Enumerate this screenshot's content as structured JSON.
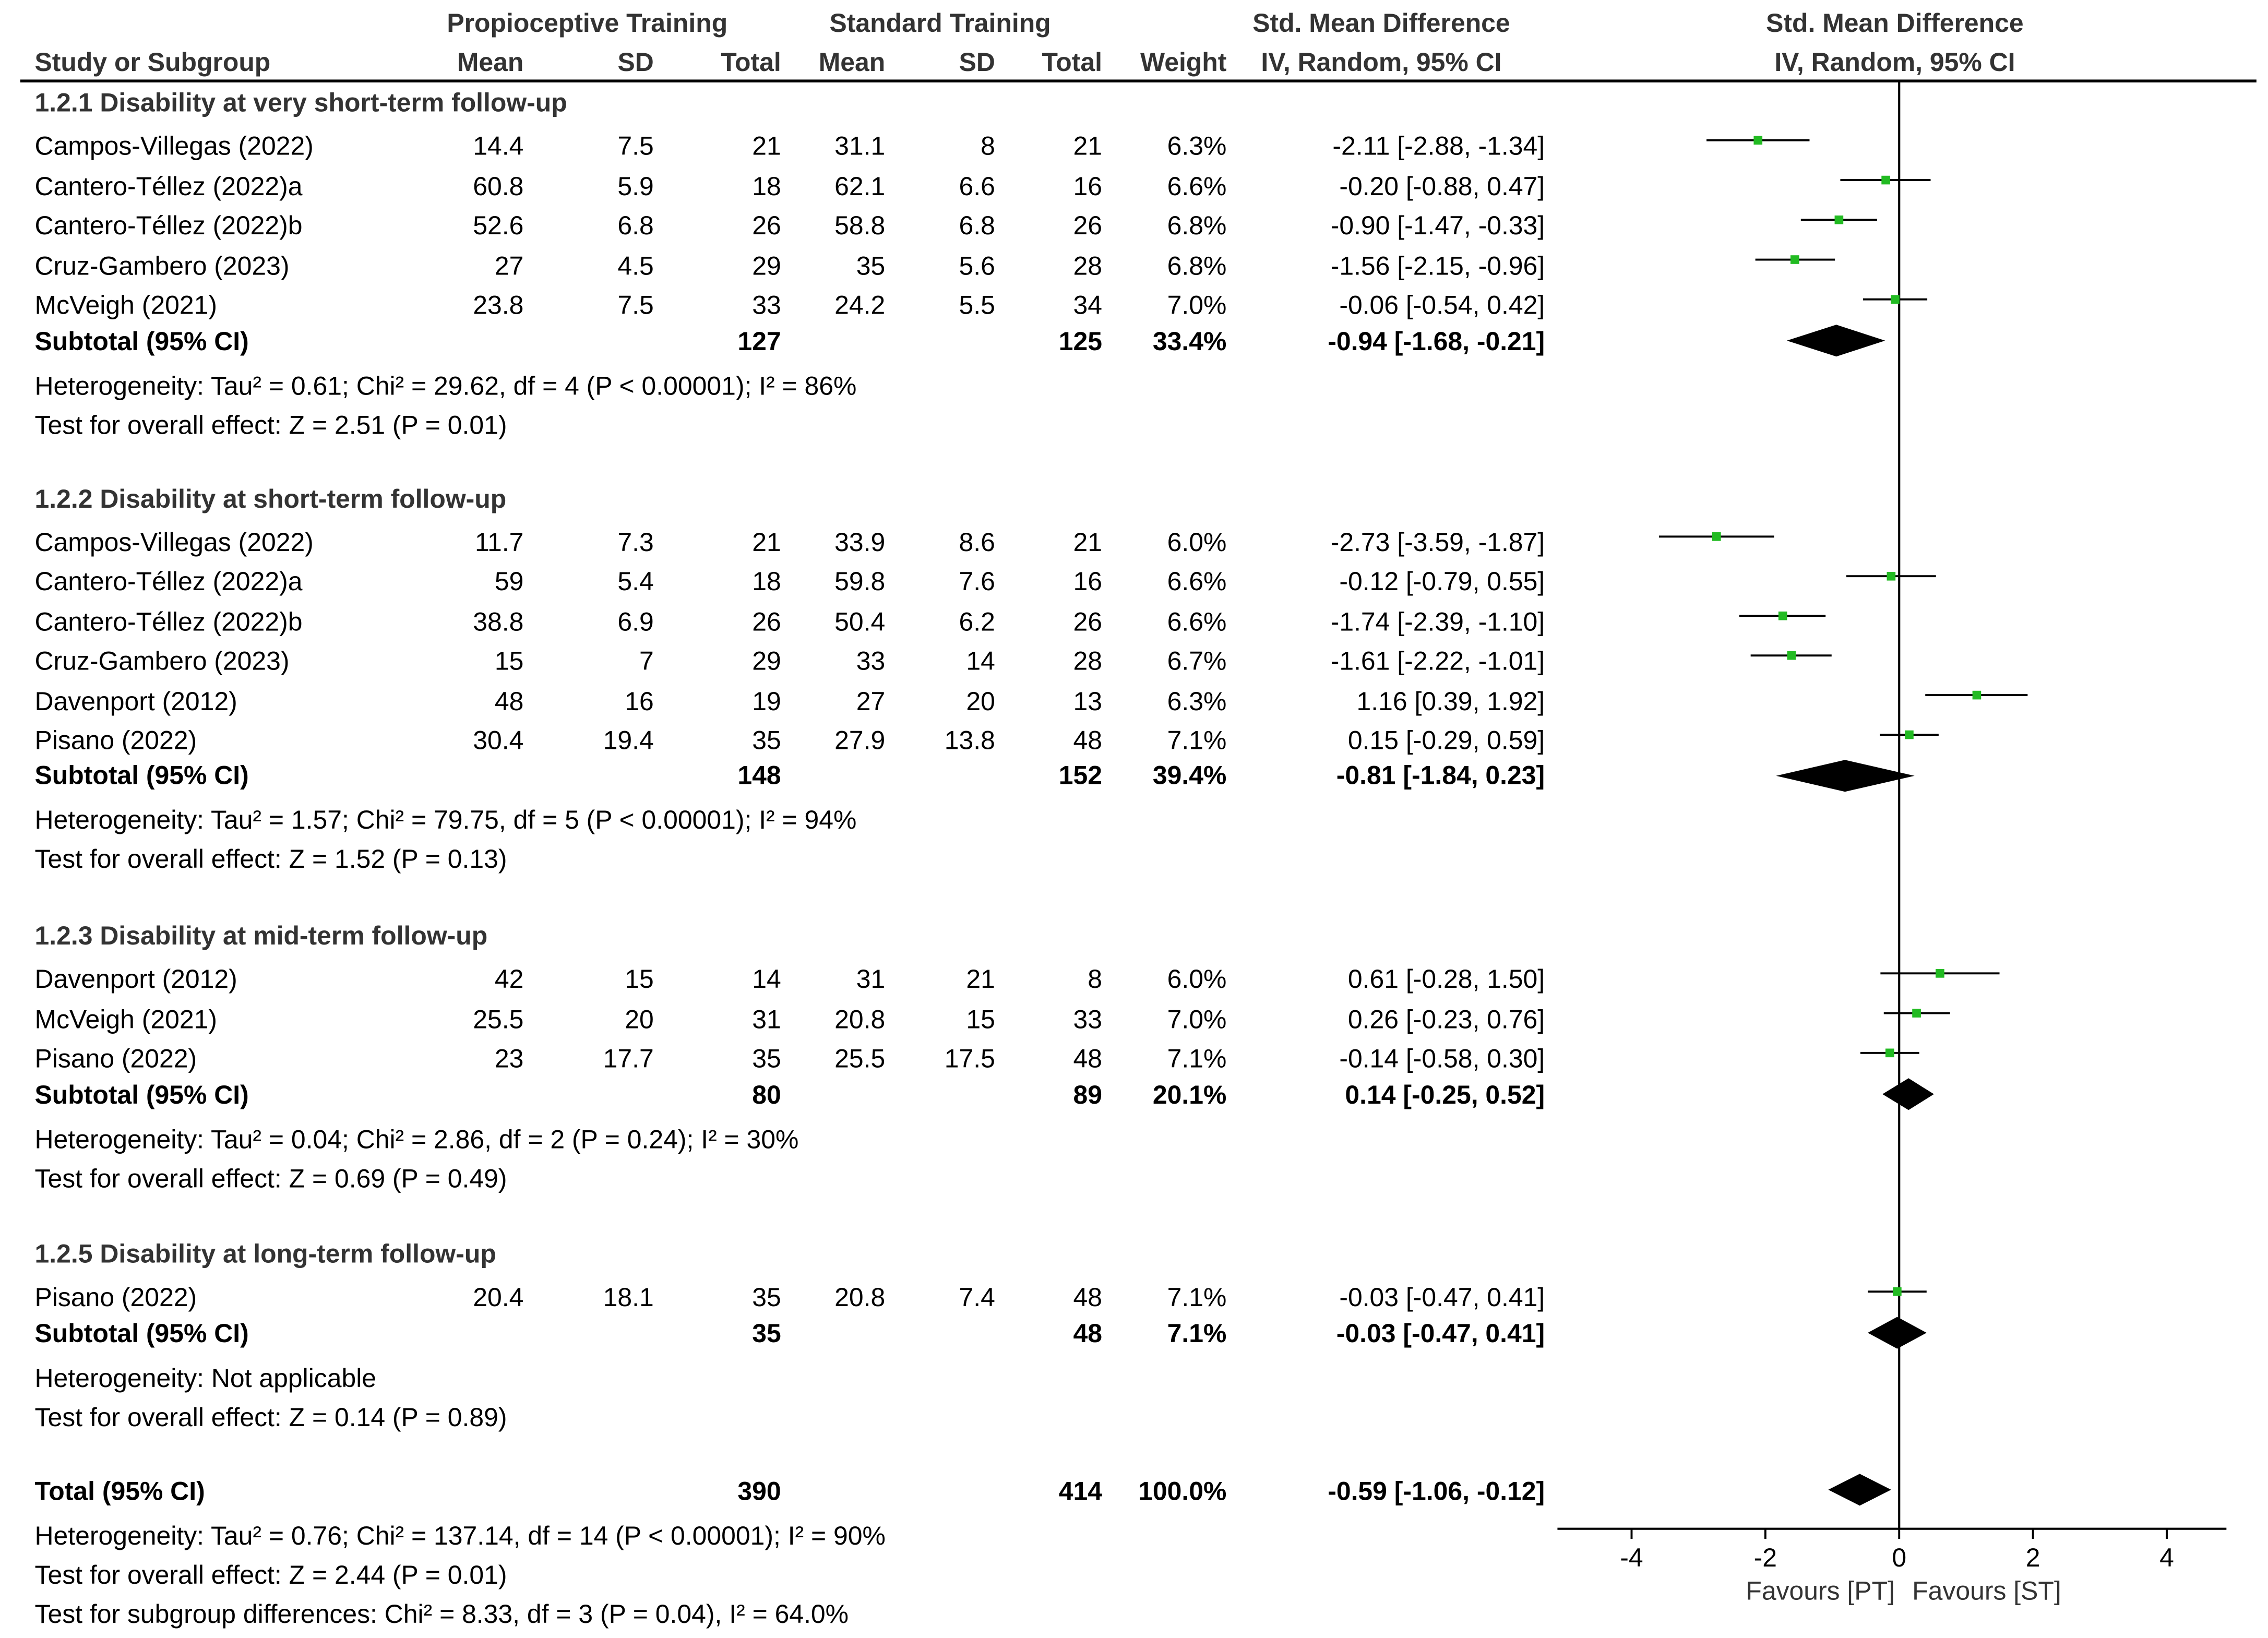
{
  "chart_data": {
    "type": "forest",
    "header": {
      "group_pt": "Propioceptive Training",
      "group_st": "Standard Training",
      "smd_left": "Std. Mean Difference",
      "smd_left_sub": "IV, Random, 95% CI",
      "smd_right": "Std. Mean Difference",
      "smd_right_sub": "IV, Random, 95% CI",
      "study": "Study or Subgroup",
      "mean": "Mean",
      "sd": "SD",
      "total": "Total",
      "weight": "Weight"
    },
    "subgroups": [
      {
        "title": "1.2.1 Disability at very short-term follow-up",
        "studies": [
          {
            "name": "Campos-Villegas (2022)",
            "pt_mean": "14.4",
            "pt_sd": "7.5",
            "pt_total": "21",
            "st_mean": "31.1",
            "st_sd": "8",
            "st_total": "21",
            "weight": "6.3%",
            "ci_text": "-2.11 [-2.88, -1.34]",
            "est": -2.11,
            "lo": -2.88,
            "hi": -1.34
          },
          {
            "name": "Cantero-Téllez (2022)a",
            "pt_mean": "60.8",
            "pt_sd": "5.9",
            "pt_total": "18",
            "st_mean": "62.1",
            "st_sd": "6.6",
            "st_total": "16",
            "weight": "6.6%",
            "ci_text": "-0.20 [-0.88, 0.47]",
            "est": -0.2,
            "lo": -0.88,
            "hi": 0.47
          },
          {
            "name": "Cantero-Téllez (2022)b",
            "pt_mean": "52.6",
            "pt_sd": "6.8",
            "pt_total": "26",
            "st_mean": "58.8",
            "st_sd": "6.8",
            "st_total": "26",
            "weight": "6.8%",
            "ci_text": "-0.90 [-1.47, -0.33]",
            "est": -0.9,
            "lo": -1.47,
            "hi": -0.33
          },
          {
            "name": "Cruz-Gambero (2023)",
            "pt_mean": "27",
            "pt_sd": "4.5",
            "pt_total": "29",
            "st_mean": "35",
            "st_sd": "5.6",
            "st_total": "28",
            "weight": "6.8%",
            "ci_text": "-1.56 [-2.15, -0.96]",
            "est": -1.56,
            "lo": -2.15,
            "hi": -0.96
          },
          {
            "name": "McVeigh (2021)",
            "pt_mean": "23.8",
            "pt_sd": "7.5",
            "pt_total": "33",
            "st_mean": "24.2",
            "st_sd": "5.5",
            "st_total": "34",
            "weight": "7.0%",
            "ci_text": "-0.06 [-0.54, 0.42]",
            "est": -0.06,
            "lo": -0.54,
            "hi": 0.42
          }
        ],
        "subtotal": {
          "label": "Subtotal (95% CI)",
          "pt_total": "127",
          "st_total": "125",
          "weight": "33.4%",
          "ci_text": "-0.94 [-1.68, -0.21]",
          "est": -0.94,
          "lo": -1.68,
          "hi": -0.21
        },
        "heterogeneity": "Heterogeneity: Tau² = 0.61; Chi² = 29.62, df = 4 (P < 0.00001); I² = 86%",
        "overall": "Test for overall effect: Z = 2.51 (P = 0.01)"
      },
      {
        "title": "1.2.2 Disability at short-term follow-up",
        "studies": [
          {
            "name": "Campos-Villegas (2022)",
            "pt_mean": "11.7",
            "pt_sd": "7.3",
            "pt_total": "21",
            "st_mean": "33.9",
            "st_sd": "8.6",
            "st_total": "21",
            "weight": "6.0%",
            "ci_text": "-2.73 [-3.59, -1.87]",
            "est": -2.73,
            "lo": -3.59,
            "hi": -1.87
          },
          {
            "name": "Cantero-Téllez (2022)a",
            "pt_mean": "59",
            "pt_sd": "5.4",
            "pt_total": "18",
            "st_mean": "59.8",
            "st_sd": "7.6",
            "st_total": "16",
            "weight": "6.6%",
            "ci_text": "-0.12 [-0.79, 0.55]",
            "est": -0.12,
            "lo": -0.79,
            "hi": 0.55
          },
          {
            "name": "Cantero-Téllez (2022)b",
            "pt_mean": "38.8",
            "pt_sd": "6.9",
            "pt_total": "26",
            "st_mean": "50.4",
            "st_sd": "6.2",
            "st_total": "26",
            "weight": "6.6%",
            "ci_text": "-1.74 [-2.39, -1.10]",
            "est": -1.74,
            "lo": -2.39,
            "hi": -1.1
          },
          {
            "name": "Cruz-Gambero (2023)",
            "pt_mean": "15",
            "pt_sd": "7",
            "pt_total": "29",
            "st_mean": "33",
            "st_sd": "14",
            "st_total": "28",
            "weight": "6.7%",
            "ci_text": "-1.61 [-2.22, -1.01]",
            "est": -1.61,
            "lo": -2.22,
            "hi": -1.01
          },
          {
            "name": "Davenport (2012)",
            "pt_mean": "48",
            "pt_sd": "16",
            "pt_total": "19",
            "st_mean": "27",
            "st_sd": "20",
            "st_total": "13",
            "weight": "6.3%",
            "ci_text": "1.16 [0.39, 1.92]",
            "est": 1.16,
            "lo": 0.39,
            "hi": 1.92
          },
          {
            "name": "Pisano (2022)",
            "pt_mean": "30.4",
            "pt_sd": "19.4",
            "pt_total": "35",
            "st_mean": "27.9",
            "st_sd": "13.8",
            "st_total": "48",
            "weight": "7.1%",
            "ci_text": "0.15 [-0.29, 0.59]",
            "est": 0.15,
            "lo": -0.29,
            "hi": 0.59
          }
        ],
        "subtotal": {
          "label": "Subtotal (95% CI)",
          "pt_total": "148",
          "st_total": "152",
          "weight": "39.4%",
          "ci_text": "-0.81 [-1.84, 0.23]",
          "est": -0.81,
          "lo": -1.84,
          "hi": 0.23
        },
        "heterogeneity": "Heterogeneity: Tau² = 1.57; Chi² = 79.75, df = 5 (P < 0.00001); I² = 94%",
        "overall": "Test for overall effect: Z = 1.52 (P = 0.13)"
      },
      {
        "title": "1.2.3 Disability at mid-term follow-up",
        "studies": [
          {
            "name": "Davenport (2012)",
            "pt_mean": "42",
            "pt_sd": "15",
            "pt_total": "14",
            "st_mean": "31",
            "st_sd": "21",
            "st_total": "8",
            "weight": "6.0%",
            "ci_text": "0.61 [-0.28, 1.50]",
            "est": 0.61,
            "lo": -0.28,
            "hi": 1.5
          },
          {
            "name": "McVeigh (2021)",
            "pt_mean": "25.5",
            "pt_sd": "20",
            "pt_total": "31",
            "st_mean": "20.8",
            "st_sd": "15",
            "st_total": "33",
            "weight": "7.0%",
            "ci_text": "0.26 [-0.23, 0.76]",
            "est": 0.26,
            "lo": -0.23,
            "hi": 0.76
          },
          {
            "name": "Pisano (2022)",
            "pt_mean": "23",
            "pt_sd": "17.7",
            "pt_total": "35",
            "st_mean": "25.5",
            "st_sd": "17.5",
            "st_total": "48",
            "weight": "7.1%",
            "ci_text": "-0.14 [-0.58, 0.30]",
            "est": -0.14,
            "lo": -0.58,
            "hi": 0.3
          }
        ],
        "subtotal": {
          "label": "Subtotal (95% CI)",
          "pt_total": "80",
          "st_total": "89",
          "weight": "20.1%",
          "ci_text": "0.14 [-0.25, 0.52]",
          "est": 0.14,
          "lo": -0.25,
          "hi": 0.52
        },
        "heterogeneity": "Heterogeneity: Tau² = 0.04; Chi² = 2.86, df = 2 (P = 0.24); I² = 30%",
        "overall": "Test for overall effect: Z = 0.69 (P = 0.49)"
      },
      {
        "title": "1.2.5 Disability at long-term follow-up",
        "studies": [
          {
            "name": "Pisano (2022)",
            "pt_mean": "20.4",
            "pt_sd": "18.1",
            "pt_total": "35",
            "st_mean": "20.8",
            "st_sd": "7.4",
            "st_total": "48",
            "weight": "7.1%",
            "ci_text": "-0.03 [-0.47, 0.41]",
            "est": -0.03,
            "lo": -0.47,
            "hi": 0.41
          }
        ],
        "subtotal": {
          "label": "Subtotal (95% CI)",
          "pt_total": "35",
          "st_total": "48",
          "weight": "7.1%",
          "ci_text": "-0.03 [-0.47, 0.41]",
          "est": -0.03,
          "lo": -0.47,
          "hi": 0.41
        },
        "heterogeneity": "Heterogeneity: Not applicable",
        "overall": "Test for overall effect: Z = 0.14 (P = 0.89)"
      }
    ],
    "total": {
      "label": "Total (95% CI)",
      "pt_total": "390",
      "st_total": "414",
      "weight": "100.0%",
      "ci_text": "-0.59 [-1.06, -0.12]",
      "est": -0.59,
      "lo": -1.06,
      "hi": -0.12
    },
    "footer": {
      "heterogeneity": "Heterogeneity: Tau² = 0.76; Chi² = 137.14, df = 14 (P < 0.00001); I² = 90%",
      "overall": "Test for overall effect: Z = 2.44 (P = 0.01)",
      "subgroup": "Test for subgroup differences: Chi² = 8.33, df = 3 (P = 0.04), I² = 64.0%"
    },
    "xaxis": {
      "min": -5,
      "max": 5,
      "ticks": [
        -4,
        -2,
        0,
        2,
        4
      ],
      "tick_labels": [
        "-4",
        "-2",
        "0",
        "2",
        "4"
      ]
    },
    "favours_left": "Favours [PT]",
    "favours_right": "Favours [ST]",
    "colors": {
      "point": "#22bb22",
      "diamond": "#000000",
      "line": "#000000"
    }
  }
}
